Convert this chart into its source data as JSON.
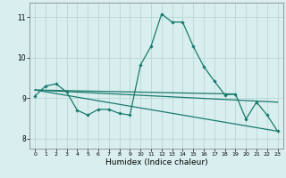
{
  "xlabel": "Humidex (Indice chaleur)",
  "bg_color": "#d9eeee",
  "grid_color": "#b8d8d8",
  "line_color": "#1a7a6e",
  "xlim": [
    -0.5,
    23.5
  ],
  "ylim": [
    7.75,
    11.35
  ],
  "yticks": [
    8,
    9,
    10,
    11
  ],
  "xticks": [
    0,
    1,
    2,
    3,
    4,
    5,
    6,
    7,
    8,
    9,
    10,
    11,
    12,
    13,
    14,
    15,
    16,
    17,
    18,
    19,
    20,
    21,
    22,
    23
  ],
  "line1_x": [
    0,
    1,
    2,
    3,
    4,
    5,
    6,
    7,
    8,
    9,
    10,
    11,
    12,
    13,
    14,
    15,
    16,
    17,
    18,
    19,
    20,
    21,
    22,
    23
  ],
  "line1_y": [
    9.05,
    9.3,
    9.35,
    9.15,
    8.7,
    8.58,
    8.72,
    8.72,
    8.62,
    8.58,
    9.82,
    10.28,
    11.08,
    10.88,
    10.88,
    10.28,
    9.78,
    9.42,
    9.08,
    9.1,
    8.48,
    8.9,
    8.58,
    8.18
  ],
  "line2_x": [
    0,
    19
  ],
  "line2_y": [
    9.2,
    9.1
  ],
  "line3_x": [
    0,
    23
  ],
  "line3_y": [
    9.2,
    8.9
  ],
  "line4_x": [
    0,
    23
  ],
  "line4_y": [
    9.2,
    8.18
  ]
}
